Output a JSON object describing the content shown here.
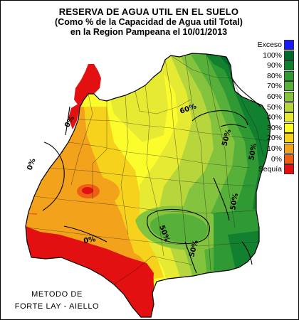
{
  "header": {
    "title_line_1": "RESERVA DE AGUA UTIL EN EL SUELO",
    "title_line_2": "(Como % de la Capacidad de Agua util Total)",
    "title_line_3": "en la Region Pampeana el 10/01/2013"
  },
  "legend": {
    "items": [
      {
        "label": "Exceso",
        "color": "#1a1aff"
      },
      {
        "label": "100%",
        "color": "#006a2e"
      },
      {
        "label": "90%",
        "color": "#11802f"
      },
      {
        "label": "80%",
        "color": "#2f9a34"
      },
      {
        "label": "70%",
        "color": "#57b03a"
      },
      {
        "label": "60%",
        "color": "#84c33d"
      },
      {
        "label": "50%",
        "color": "#b6d63b"
      },
      {
        "label": "40%",
        "color": "#e6ea33"
      },
      {
        "label": "30%",
        "color": "#fcfc2c"
      },
      {
        "label": "20%",
        "color": "#f6d21d"
      },
      {
        "label": "10%",
        "color": "#f3a21c"
      },
      {
        "label": "0%",
        "color": "#ed5f16"
      },
      {
        "label": "Sequía",
        "color": "#e21010"
      }
    ]
  },
  "map_labels": {
    "label_a": "60%",
    "label_b": "50%",
    "label_c": "50%",
    "label_d": "0%",
    "label_e": "0%",
    "label_f": "0%",
    "label_g": "50%",
    "label_h": "50%",
    "label_i": "50%"
  },
  "footer": {
    "method_line_1": "METODO DE",
    "method_line_2": "FORTE LAY - AIELLO"
  }
}
